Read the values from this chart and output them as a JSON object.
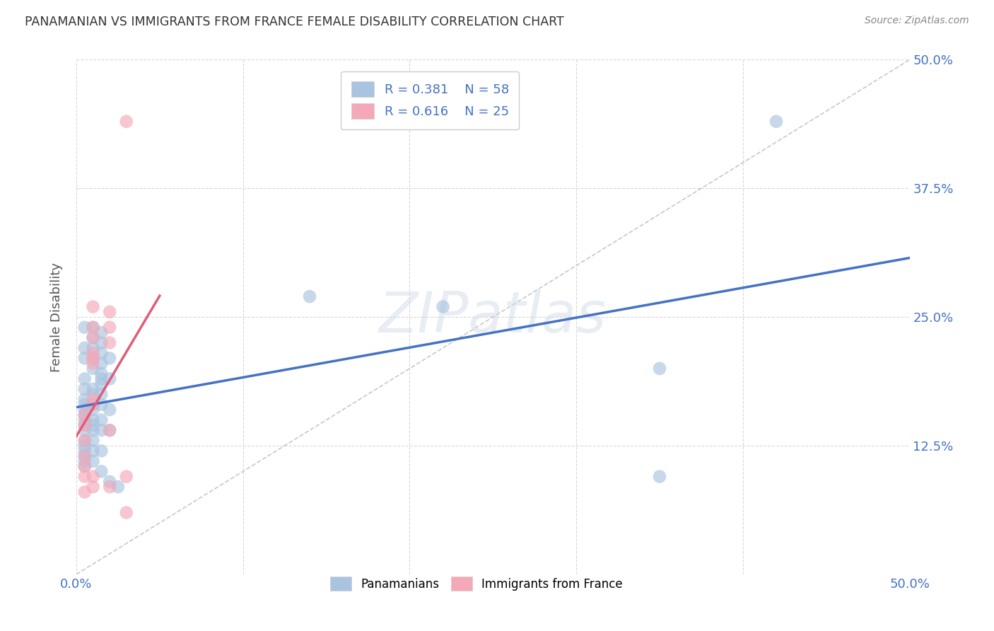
{
  "title": "PANAMANIAN VS IMMIGRANTS FROM FRANCE FEMALE DISABILITY CORRELATION CHART",
  "source": "Source: ZipAtlas.com",
  "ylabel": "Female Disability",
  "xlim": [
    0.0,
    0.5
  ],
  "ylim": [
    0.0,
    0.5
  ],
  "xtick_positions": [
    0.0,
    0.1,
    0.2,
    0.3,
    0.4,
    0.5
  ],
  "xtick_labels": [
    "0.0%",
    "",
    "",
    "",
    "",
    "50.0%"
  ],
  "ytick_positions": [
    0.125,
    0.25,
    0.375,
    0.5
  ],
  "ytick_labels": [
    "12.5%",
    "25.0%",
    "37.5%",
    "50.0%"
  ],
  "blue_color": "#a8c4e0",
  "pink_color": "#f4a8b8",
  "blue_line_color": "#4472c4",
  "pink_line_color": "#e05c7a",
  "diagonal_color": "#c8c8c8",
  "watermark": "ZIPatlas",
  "panamanians": [
    [
      0.005,
      0.22
    ],
    [
      0.005,
      0.24
    ],
    [
      0.01,
      0.24
    ],
    [
      0.01,
      0.23
    ],
    [
      0.005,
      0.21
    ],
    [
      0.01,
      0.2
    ],
    [
      0.005,
      0.19
    ],
    [
      0.005,
      0.18
    ],
    [
      0.005,
      0.17
    ],
    [
      0.005,
      0.16
    ],
    [
      0.005,
      0.155
    ],
    [
      0.005,
      0.15
    ],
    [
      0.005,
      0.145
    ],
    [
      0.005,
      0.14
    ],
    [
      0.005,
      0.13
    ],
    [
      0.005,
      0.125
    ],
    [
      0.005,
      0.12
    ],
    [
      0.005,
      0.115
    ],
    [
      0.005,
      0.11
    ],
    [
      0.005,
      0.105
    ],
    [
      0.005,
      0.165
    ],
    [
      0.01,
      0.22
    ],
    [
      0.01,
      0.21
    ],
    [
      0.01,
      0.18
    ],
    [
      0.01,
      0.175
    ],
    [
      0.01,
      0.165
    ],
    [
      0.01,
      0.15
    ],
    [
      0.01,
      0.145
    ],
    [
      0.01,
      0.14
    ],
    [
      0.01,
      0.13
    ],
    [
      0.01,
      0.12
    ],
    [
      0.01,
      0.11
    ],
    [
      0.01,
      0.16
    ],
    [
      0.015,
      0.235
    ],
    [
      0.015,
      0.225
    ],
    [
      0.015,
      0.215
    ],
    [
      0.015,
      0.205
    ],
    [
      0.015,
      0.195
    ],
    [
      0.015,
      0.19
    ],
    [
      0.015,
      0.185
    ],
    [
      0.015,
      0.175
    ],
    [
      0.015,
      0.165
    ],
    [
      0.015,
      0.15
    ],
    [
      0.015,
      0.14
    ],
    [
      0.015,
      0.12
    ],
    [
      0.015,
      0.1
    ],
    [
      0.02,
      0.21
    ],
    [
      0.02,
      0.19
    ],
    [
      0.02,
      0.16
    ],
    [
      0.02,
      0.14
    ],
    [
      0.02,
      0.09
    ],
    [
      0.025,
      0.085
    ],
    [
      0.14,
      0.27
    ],
    [
      0.22,
      0.26
    ],
    [
      0.35,
      0.2
    ],
    [
      0.35,
      0.095
    ],
    [
      0.42,
      0.44
    ]
  ],
  "france": [
    [
      0.005,
      0.155
    ],
    [
      0.005,
      0.145
    ],
    [
      0.005,
      0.13
    ],
    [
      0.005,
      0.115
    ],
    [
      0.005,
      0.105
    ],
    [
      0.005,
      0.095
    ],
    [
      0.005,
      0.08
    ],
    [
      0.01,
      0.26
    ],
    [
      0.01,
      0.24
    ],
    [
      0.01,
      0.23
    ],
    [
      0.01,
      0.215
    ],
    [
      0.01,
      0.21
    ],
    [
      0.01,
      0.205
    ],
    [
      0.01,
      0.17
    ],
    [
      0.01,
      0.165
    ],
    [
      0.01,
      0.095
    ],
    [
      0.01,
      0.085
    ],
    [
      0.02,
      0.255
    ],
    [
      0.02,
      0.24
    ],
    [
      0.02,
      0.225
    ],
    [
      0.02,
      0.14
    ],
    [
      0.02,
      0.085
    ],
    [
      0.03,
      0.44
    ],
    [
      0.03,
      0.095
    ],
    [
      0.03,
      0.06
    ]
  ]
}
